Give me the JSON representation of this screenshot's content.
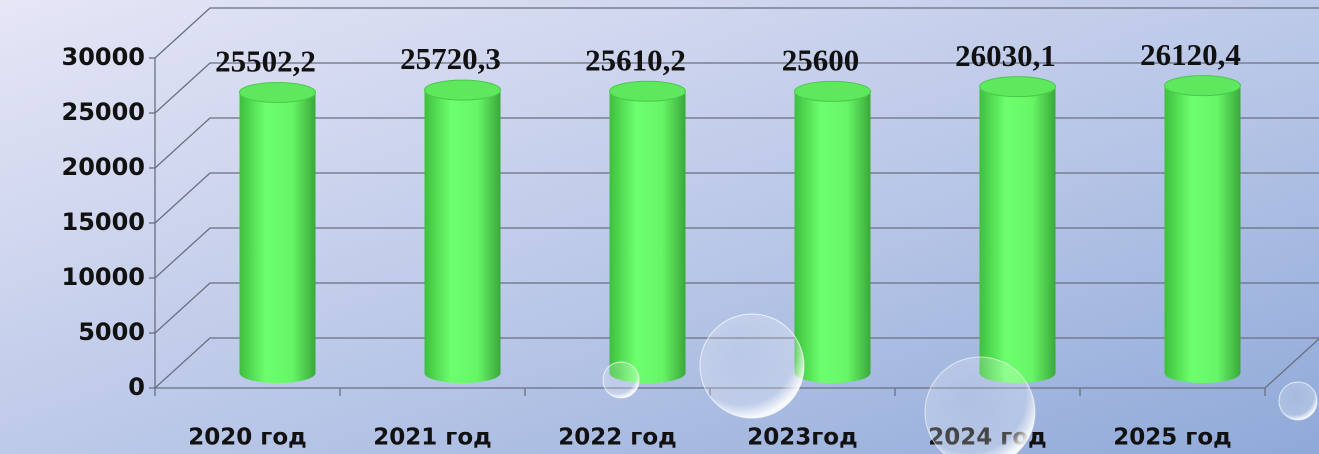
{
  "chart_data": {
    "type": "bar",
    "categories": [
      "2020 год",
      "2021 год",
      "2022 год",
      "2023год",
      "2024 год",
      "2025 год"
    ],
    "values": [
      25502.2,
      25720.3,
      25610.2,
      25600,
      26030.1,
      26120.4
    ],
    "value_labels": [
      "25502,2",
      "25720,3",
      "25610,2",
      "25600",
      "26030,1",
      "26120,4"
    ],
    "color": "#66ff66",
    "ylim": [
      0,
      30000
    ],
    "yticks": [
      0,
      5000,
      10000,
      15000,
      20000,
      25000,
      30000
    ],
    "grid": true
  }
}
